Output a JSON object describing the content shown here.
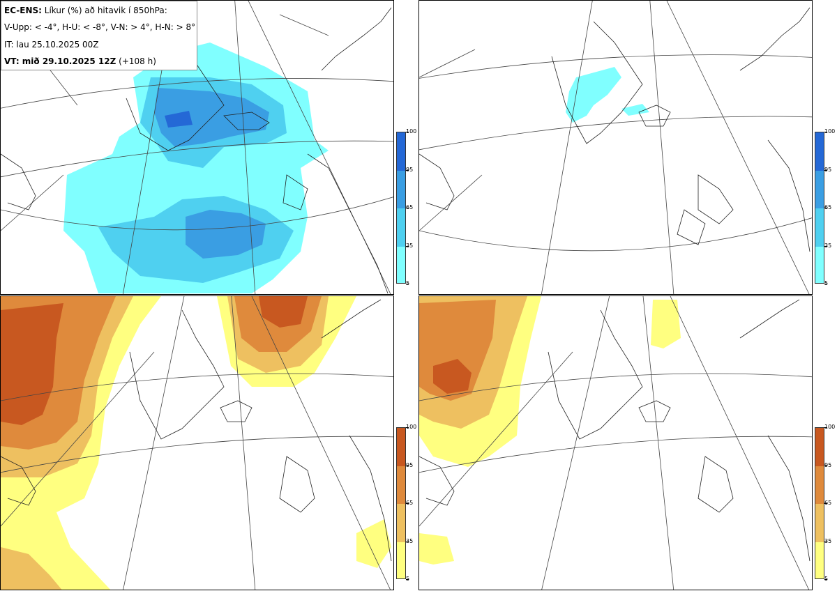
{
  "info": {
    "model": "EC-ENS:",
    "title": "Líkur (%) að hitavik í 850hPa:",
    "thresholds": "V-Upp: < -4°, H-U: < -8°, V-N: > 4°, H-N: > 8°",
    "init_time": "IT: lau 25.10.2025 00Z",
    "valid_label": "VT: mið 29.10.2025 12Z",
    "lead_time": "(+108 h)"
  },
  "panels": [
    {
      "id": "V-Upp",
      "description_name": "cold-anomaly-4"
    },
    {
      "id": "H-U",
      "description_name": "cold-anomaly-8"
    },
    {
      "id": "V-N",
      "description_name": "warm-anomaly-4"
    },
    {
      "id": "H-N",
      "description_name": "warm-anomaly-8"
    }
  ],
  "colorbar": {
    "ticks": [
      "100",
      "95",
      "65",
      "35",
      "5"
    ],
    "cold_colors": [
      "#80ffff",
      "#4fd0f0",
      "#3a9ee3",
      "#2468d6"
    ],
    "warm_colors": [
      "#ffff80",
      "#eec060",
      "#df8a3c",
      "#c85820"
    ]
  }
}
